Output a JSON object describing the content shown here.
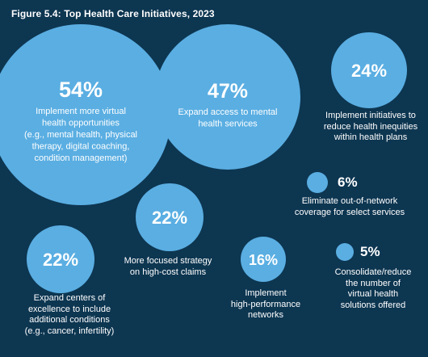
{
  "chart_data": {
    "type": "bubble",
    "title": "Figure 5.4: Top Health Care Initiatives, 2023",
    "bubble_color": "#5aaee2",
    "background_color": "#0d3651",
    "items": [
      {
        "value": 54,
        "value_label": "54%",
        "label": [
          "Implement more virtual",
          "health opportunities",
          "(e.g., mental health, physical",
          "therapy, digital coaching,",
          "condition management)"
        ]
      },
      {
        "value": 47,
        "value_label": "47%",
        "label": [
          "Expand access to mental",
          "health services"
        ]
      },
      {
        "value": 24,
        "value_label": "24%",
        "label": [
          "Implement initiatives to",
          "reduce health inequities",
          "within health plans"
        ]
      },
      {
        "value": 22,
        "value_label": "22%",
        "label": [
          "More focused strategy",
          "on high-cost claims"
        ]
      },
      {
        "value": 22,
        "value_label": "22%",
        "label": [
          "Expand centers of",
          "excellence to include",
          "additional conditions",
          "(e.g., cancer, infertility)"
        ]
      },
      {
        "value": 16,
        "value_label": "16%",
        "label": [
          "Implement",
          "high-performance",
          "networks"
        ]
      },
      {
        "value": 6,
        "value_label": "6%",
        "label": [
          "Eliminate out-of-network",
          "coverage for select services"
        ]
      },
      {
        "value": 5,
        "value_label": "5%",
        "label": [
          "Consolidate/reduce",
          "the number of",
          "virtual health",
          "solutions offered"
        ]
      }
    ]
  }
}
